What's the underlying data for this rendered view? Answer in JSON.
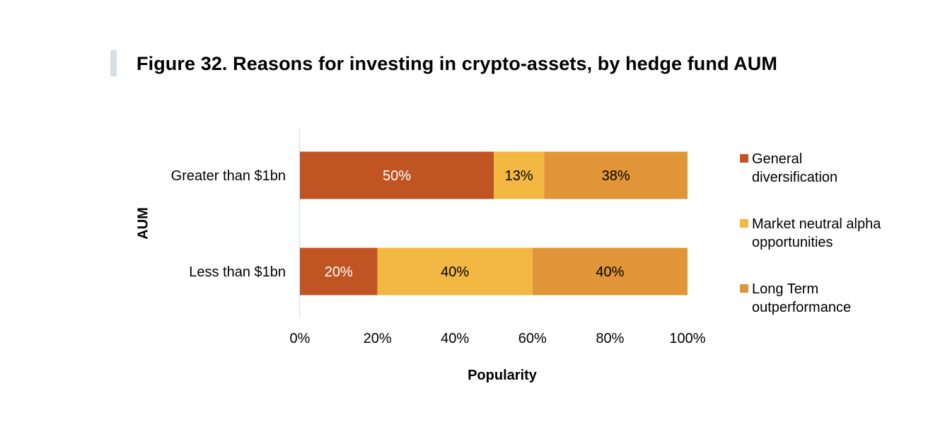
{
  "figure": {
    "title": "Figure 32. Reasons for investing in crypto-assets, by hedge fund AUM"
  },
  "chart_data": {
    "type": "bar",
    "orientation": "horizontal",
    "stacked": true,
    "title": "Figure 32. Reasons for investing in crypto-assets, by hedge fund AUM",
    "xlabel": "Popularity",
    "ylabel": "AUM",
    "xlim": [
      0,
      100
    ],
    "x_ticks": [
      "0%",
      "20%",
      "40%",
      "60%",
      "80%",
      "100%"
    ],
    "categories": [
      "Greater than $1bn",
      "Less than $1bn"
    ],
    "series": [
      {
        "name": "General diversification",
        "legend_lines": [
          "General",
          "diversification"
        ],
        "color": "#c05423",
        "values": [
          50,
          20
        ],
        "labels": [
          "50%",
          "20%"
        ],
        "label_color": "#ffffff"
      },
      {
        "name": "Market neutral alpha opportunities",
        "legend_lines": [
          "Market neutral alpha",
          "opportunities"
        ],
        "color": "#f3b842",
        "values": [
          13,
          40
        ],
        "labels": [
          "13%",
          "40%"
        ],
        "label_color": "#000000"
      },
      {
        "name": "Long Term outperformance",
        "legend_lines": [
          "Long Term",
          "outperformance"
        ],
        "color": "#e09538",
        "values": [
          38,
          40
        ],
        "labels": [
          "38%",
          "40%"
        ],
        "label_color": "#000000"
      }
    ],
    "legend_position": "right",
    "grid": false
  }
}
